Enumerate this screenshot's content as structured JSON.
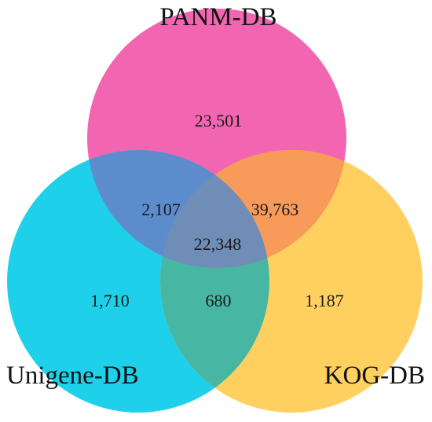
{
  "sets": [
    {
      "id": "panm",
      "label": "PANM-DB",
      "color": "#f266b1"
    },
    {
      "id": "unigene",
      "label": "Unigene-DB",
      "color": "#1fd0ea"
    },
    {
      "id": "kog",
      "label": "KOG-DB",
      "color": "#ffcf60"
    }
  ],
  "regions": {
    "panm_only": "23,501",
    "unigene_only": "1,710",
    "kog_only": "1,187",
    "panm_unigene": "2,107",
    "panm_kog": "39,763",
    "unigene_kog": "680",
    "all_three": "22,348"
  },
  "colors": {
    "panm_unigene": "#5d8ccc",
    "panm_kog": "#f79a5a",
    "unigene_kog": "#47b6a3",
    "all_three": "#6f8db6"
  }
}
